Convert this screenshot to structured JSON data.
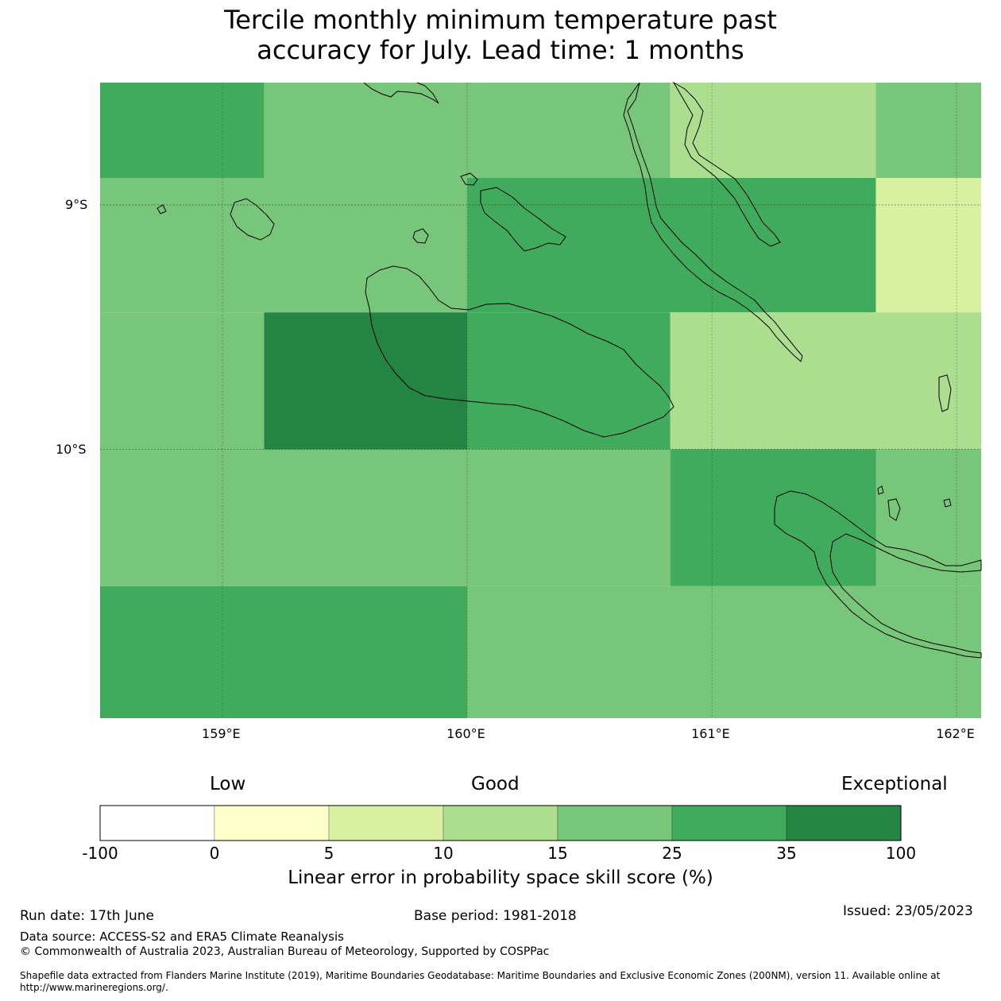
{
  "title_line1": "Tercile monthly minimum temperature past",
  "title_line2": "accuracy for July. Lead time: 1 months",
  "map": {
    "lon_range": [
      158.5,
      162.1
    ],
    "lat_range": [
      -11.1,
      -8.5
    ],
    "lon_ticks": [
      {
        "value": 159,
        "label": "159°E"
      },
      {
        "value": 160,
        "label": "160°E"
      },
      {
        "value": 161,
        "label": "161°E"
      },
      {
        "value": 162,
        "label": "162°E"
      }
    ],
    "lat_ticks": [
      {
        "value": -9,
        "label": "9°S"
      },
      {
        "value": -10,
        "label": "10°S"
      }
    ]
  },
  "colorbar": {
    "category_low": "Low",
    "category_good": "Good",
    "category_exceptional": "Exceptional",
    "bins": [
      {
        "from": "-100",
        "to": "0",
        "color": "#ffffff"
      },
      {
        "from": "0",
        "to": "5",
        "color": "#ffffcc"
      },
      {
        "from": "5",
        "to": "10",
        "color": "#d9f0a3"
      },
      {
        "from": "10",
        "to": "15",
        "color": "#addd8e"
      },
      {
        "from": "15",
        "to": "25",
        "color": "#78c679"
      },
      {
        "from": "25",
        "to": "35",
        "color": "#41ab5d"
      },
      {
        "from": "35",
        "to": "100",
        "color": "#238443"
      }
    ],
    "tick_labels": [
      "-100",
      "0",
      "5",
      "10",
      "15",
      "25",
      "35",
      "100"
    ],
    "label": "Linear error in probability space skill score (%)"
  },
  "chart_data": {
    "type": "heatmap",
    "title": "Tercile monthly minimum temperature past accuracy for July. Lead time: 1 months",
    "description_units": "skill score category color per grid cell",
    "cells": [
      {
        "lon": [
          158.5,
          159.17
        ],
        "lat": [
          -8.5,
          -8.89
        ],
        "bin": "25-35"
      },
      {
        "lon": [
          159.17,
          160.83
        ],
        "lat": [
          -8.5,
          -8.89
        ],
        "bin": "15-25"
      },
      {
        "lon": [
          160.83,
          161.67
        ],
        "lat": [
          -8.5,
          -8.89
        ],
        "bin": "10-15"
      },
      {
        "lon": [
          161.67,
          162.1
        ],
        "lat": [
          -8.5,
          -8.89
        ],
        "bin": "15-25"
      },
      {
        "lon": [
          158.5,
          160.0
        ],
        "lat": [
          -8.89,
          -9.44
        ],
        "bin": "15-25"
      },
      {
        "lon": [
          160.0,
          161.67
        ],
        "lat": [
          -8.89,
          -9.44
        ],
        "bin": "25-35"
      },
      {
        "lon": [
          161.67,
          162.1
        ],
        "lat": [
          -8.89,
          -9.44
        ],
        "bin": "5-10"
      },
      {
        "lon": [
          158.5,
          159.17
        ],
        "lat": [
          -9.44,
          -10.0
        ],
        "bin": "15-25"
      },
      {
        "lon": [
          159.17,
          160.0
        ],
        "lat": [
          -9.44,
          -10.0
        ],
        "bin": "35-100"
      },
      {
        "lon": [
          160.0,
          160.83
        ],
        "lat": [
          -9.44,
          -10.0
        ],
        "bin": "25-35"
      },
      {
        "lon": [
          160.83,
          162.1
        ],
        "lat": [
          -9.44,
          -10.0
        ],
        "bin": "10-15"
      },
      {
        "lon": [
          158.5,
          160.83
        ],
        "lat": [
          -10.0,
          -10.56
        ],
        "bin": "15-25"
      },
      {
        "lon": [
          160.83,
          161.67
        ],
        "lat": [
          -10.0,
          -10.56
        ],
        "bin": "25-35"
      },
      {
        "lon": [
          161.67,
          162.1
        ],
        "lat": [
          -10.0,
          -10.56
        ],
        "bin": "15-25"
      },
      {
        "lon": [
          158.5,
          160.0
        ],
        "lat": [
          -10.56,
          -11.1
        ],
        "bin": "25-35"
      },
      {
        "lon": [
          160.0,
          162.1
        ],
        "lat": [
          -10.56,
          -11.1
        ],
        "bin": "15-25"
      }
    ]
  },
  "footer": {
    "run_date": "Run date: 17th June",
    "base_period": "Base period: 1981-2018",
    "issued": "Issued: 23/05/2023",
    "data_source": "Data source: ACCESS-S2 and ERA5 Climate Reanalysis",
    "copyright": "© Commonwealth of Australia 2023, Australian Bureau of Meteorology, Supported by COSPPac",
    "shapefile_line1": "Shapefile data extracted from Flanders Marine Institute (2019), Maritime Boundaries Geodatabase: Maritime Boundaries and Exclusive Economic Zones (200NM), version 11. Available online at",
    "shapefile_line2": "http://www.marineregions.org/."
  }
}
